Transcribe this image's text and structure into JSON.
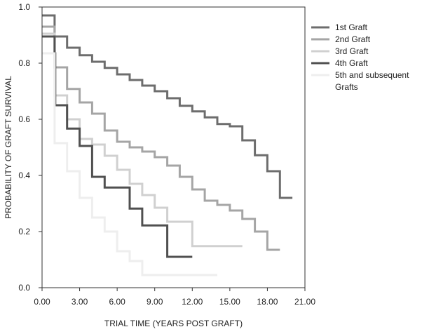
{
  "chart_data": {
    "type": "line",
    "step": true,
    "title": "",
    "xlabel": "TRIAL TIME (YEARS POST GRAFT)",
    "ylabel": "PROBABILITY OF GRAFT SURVIVAL",
    "xlim": [
      0,
      21
    ],
    "ylim": [
      0,
      1
    ],
    "xticks": [
      0,
      3,
      6,
      9,
      12,
      15,
      18,
      21
    ],
    "xtick_labels": [
      "0.00",
      "3.00",
      "6.00",
      "9.00",
      "12.00",
      "15.00",
      "18.00",
      "21.00"
    ],
    "yticks": [
      0,
      0.2,
      0.4,
      0.6,
      0.8,
      1.0
    ],
    "ytick_labels": [
      "0.0",
      "0.2",
      "0.4",
      "0.6",
      "0.8",
      "1.0"
    ],
    "grid": false,
    "legend_position": "right",
    "series": [
      {
        "name": "1st Graft",
        "color": "#6d6d6d",
        "points": [
          [
            0,
            0.97
          ],
          [
            1,
            0.97
          ],
          [
            1,
            0.895
          ],
          [
            2,
            0.895
          ],
          [
            2,
            0.855
          ],
          [
            3,
            0.855
          ],
          [
            3,
            0.828
          ],
          [
            4,
            0.828
          ],
          [
            4,
            0.805
          ],
          [
            5,
            0.805
          ],
          [
            5,
            0.783
          ],
          [
            6,
            0.783
          ],
          [
            6,
            0.76
          ],
          [
            7,
            0.76
          ],
          [
            7,
            0.74
          ],
          [
            8,
            0.74
          ],
          [
            8,
            0.72
          ],
          [
            9,
            0.72
          ],
          [
            9,
            0.7
          ],
          [
            10,
            0.7
          ],
          [
            10,
            0.675
          ],
          [
            11,
            0.675
          ],
          [
            11,
            0.648
          ],
          [
            12,
            0.648
          ],
          [
            12,
            0.628
          ],
          [
            13,
            0.628
          ],
          [
            13,
            0.607
          ],
          [
            14,
            0.607
          ],
          [
            14,
            0.583
          ],
          [
            15,
            0.583
          ],
          [
            15,
            0.575
          ],
          [
            16,
            0.575
          ],
          [
            16,
            0.525
          ],
          [
            16.3,
            0.525
          ],
          [
            16.3,
            0.525
          ],
          [
            17,
            0.525
          ],
          [
            17,
            0.472
          ],
          [
            18,
            0.472
          ],
          [
            18,
            0.415
          ],
          [
            19,
            0.415
          ],
          [
            19,
            0.32
          ],
          [
            20,
            0.32
          ]
        ]
      },
      {
        "name": "2nd Graft",
        "color": "#a5a5a5",
        "points": [
          [
            0,
            0.93
          ],
          [
            1,
            0.93
          ],
          [
            1,
            0.785
          ],
          [
            2,
            0.785
          ],
          [
            2,
            0.708
          ],
          [
            3,
            0.708
          ],
          [
            3,
            0.66
          ],
          [
            4,
            0.66
          ],
          [
            4,
            0.62
          ],
          [
            5,
            0.62
          ],
          [
            5,
            0.56
          ],
          [
            6,
            0.56
          ],
          [
            6,
            0.52
          ],
          [
            7,
            0.52
          ],
          [
            7,
            0.5
          ],
          [
            8,
            0.5
          ],
          [
            8,
            0.485
          ],
          [
            9,
            0.485
          ],
          [
            9,
            0.465
          ],
          [
            10,
            0.465
          ],
          [
            10,
            0.435
          ],
          [
            11,
            0.435
          ],
          [
            11,
            0.395
          ],
          [
            12,
            0.395
          ],
          [
            12,
            0.35
          ],
          [
            13,
            0.35
          ],
          [
            13,
            0.31
          ],
          [
            14,
            0.31
          ],
          [
            14,
            0.295
          ],
          [
            15,
            0.295
          ],
          [
            15,
            0.275
          ],
          [
            16,
            0.275
          ],
          [
            16,
            0.245
          ],
          [
            17,
            0.245
          ],
          [
            17,
            0.2
          ],
          [
            18,
            0.2
          ],
          [
            18,
            0.135
          ],
          [
            19,
            0.135
          ]
        ]
      },
      {
        "name": "3rd Graft",
        "color": "#d0d0d0",
        "points": [
          [
            0,
            0.905
          ],
          [
            1,
            0.905
          ],
          [
            1,
            0.685
          ],
          [
            2,
            0.685
          ],
          [
            2,
            0.6
          ],
          [
            3,
            0.6
          ],
          [
            3,
            0.53
          ],
          [
            4,
            0.53
          ],
          [
            4,
            0.51
          ],
          [
            5,
            0.51
          ],
          [
            5,
            0.47
          ],
          [
            6,
            0.47
          ],
          [
            6,
            0.42
          ],
          [
            7,
            0.42
          ],
          [
            7,
            0.37
          ],
          [
            8,
            0.37
          ],
          [
            8,
            0.33
          ],
          [
            9,
            0.33
          ],
          [
            9,
            0.285
          ],
          [
            10,
            0.285
          ],
          [
            10,
            0.235
          ],
          [
            12,
            0.235
          ],
          [
            12,
            0.148
          ],
          [
            16,
            0.148
          ]
        ]
      },
      {
        "name": "4th Graft",
        "color": "#505050",
        "points": [
          [
            0,
            0.895
          ],
          [
            1,
            0.895
          ],
          [
            1,
            0.835
          ],
          [
            1.05,
            0.835
          ],
          [
            1.05,
            0.65
          ],
          [
            2,
            0.65
          ],
          [
            2,
            0.567
          ],
          [
            3,
            0.567
          ],
          [
            3,
            0.505
          ],
          [
            4,
            0.505
          ],
          [
            4,
            0.395
          ],
          [
            5,
            0.395
          ],
          [
            5,
            0.357
          ],
          [
            7,
            0.357
          ],
          [
            7,
            0.282
          ],
          [
            8,
            0.282
          ],
          [
            8,
            0.222
          ],
          [
            10,
            0.222
          ],
          [
            10,
            0.11
          ],
          [
            12,
            0.11
          ]
        ]
      },
      {
        "name": "5th and subsequent Grafts",
        "color": "#eeeeee",
        "points": [
          [
            0,
            0.835
          ],
          [
            1,
            0.835
          ],
          [
            1,
            0.515
          ],
          [
            2,
            0.515
          ],
          [
            2,
            0.415
          ],
          [
            3,
            0.415
          ],
          [
            3,
            0.32
          ],
          [
            4,
            0.32
          ],
          [
            4,
            0.25
          ],
          [
            5,
            0.25
          ],
          [
            5,
            0.2
          ],
          [
            6,
            0.2
          ],
          [
            6,
            0.13
          ],
          [
            7,
            0.13
          ],
          [
            7,
            0.095
          ],
          [
            8,
            0.095
          ],
          [
            8,
            0.045
          ],
          [
            14,
            0.045
          ]
        ]
      }
    ]
  },
  "legend": {
    "items": [
      {
        "lines": [
          "1st Graft"
        ],
        "color": "#6d6d6d"
      },
      {
        "lines": [
          "2nd Graft"
        ],
        "color": "#a5a5a5"
      },
      {
        "lines": [
          "3rd Graft"
        ],
        "color": "#d0d0d0"
      },
      {
        "lines": [
          "4th Graft"
        ],
        "color": "#505050"
      },
      {
        "lines": [
          "5th and subsequent",
          "Grafts"
        ],
        "color": "#eeeeee"
      }
    ]
  }
}
